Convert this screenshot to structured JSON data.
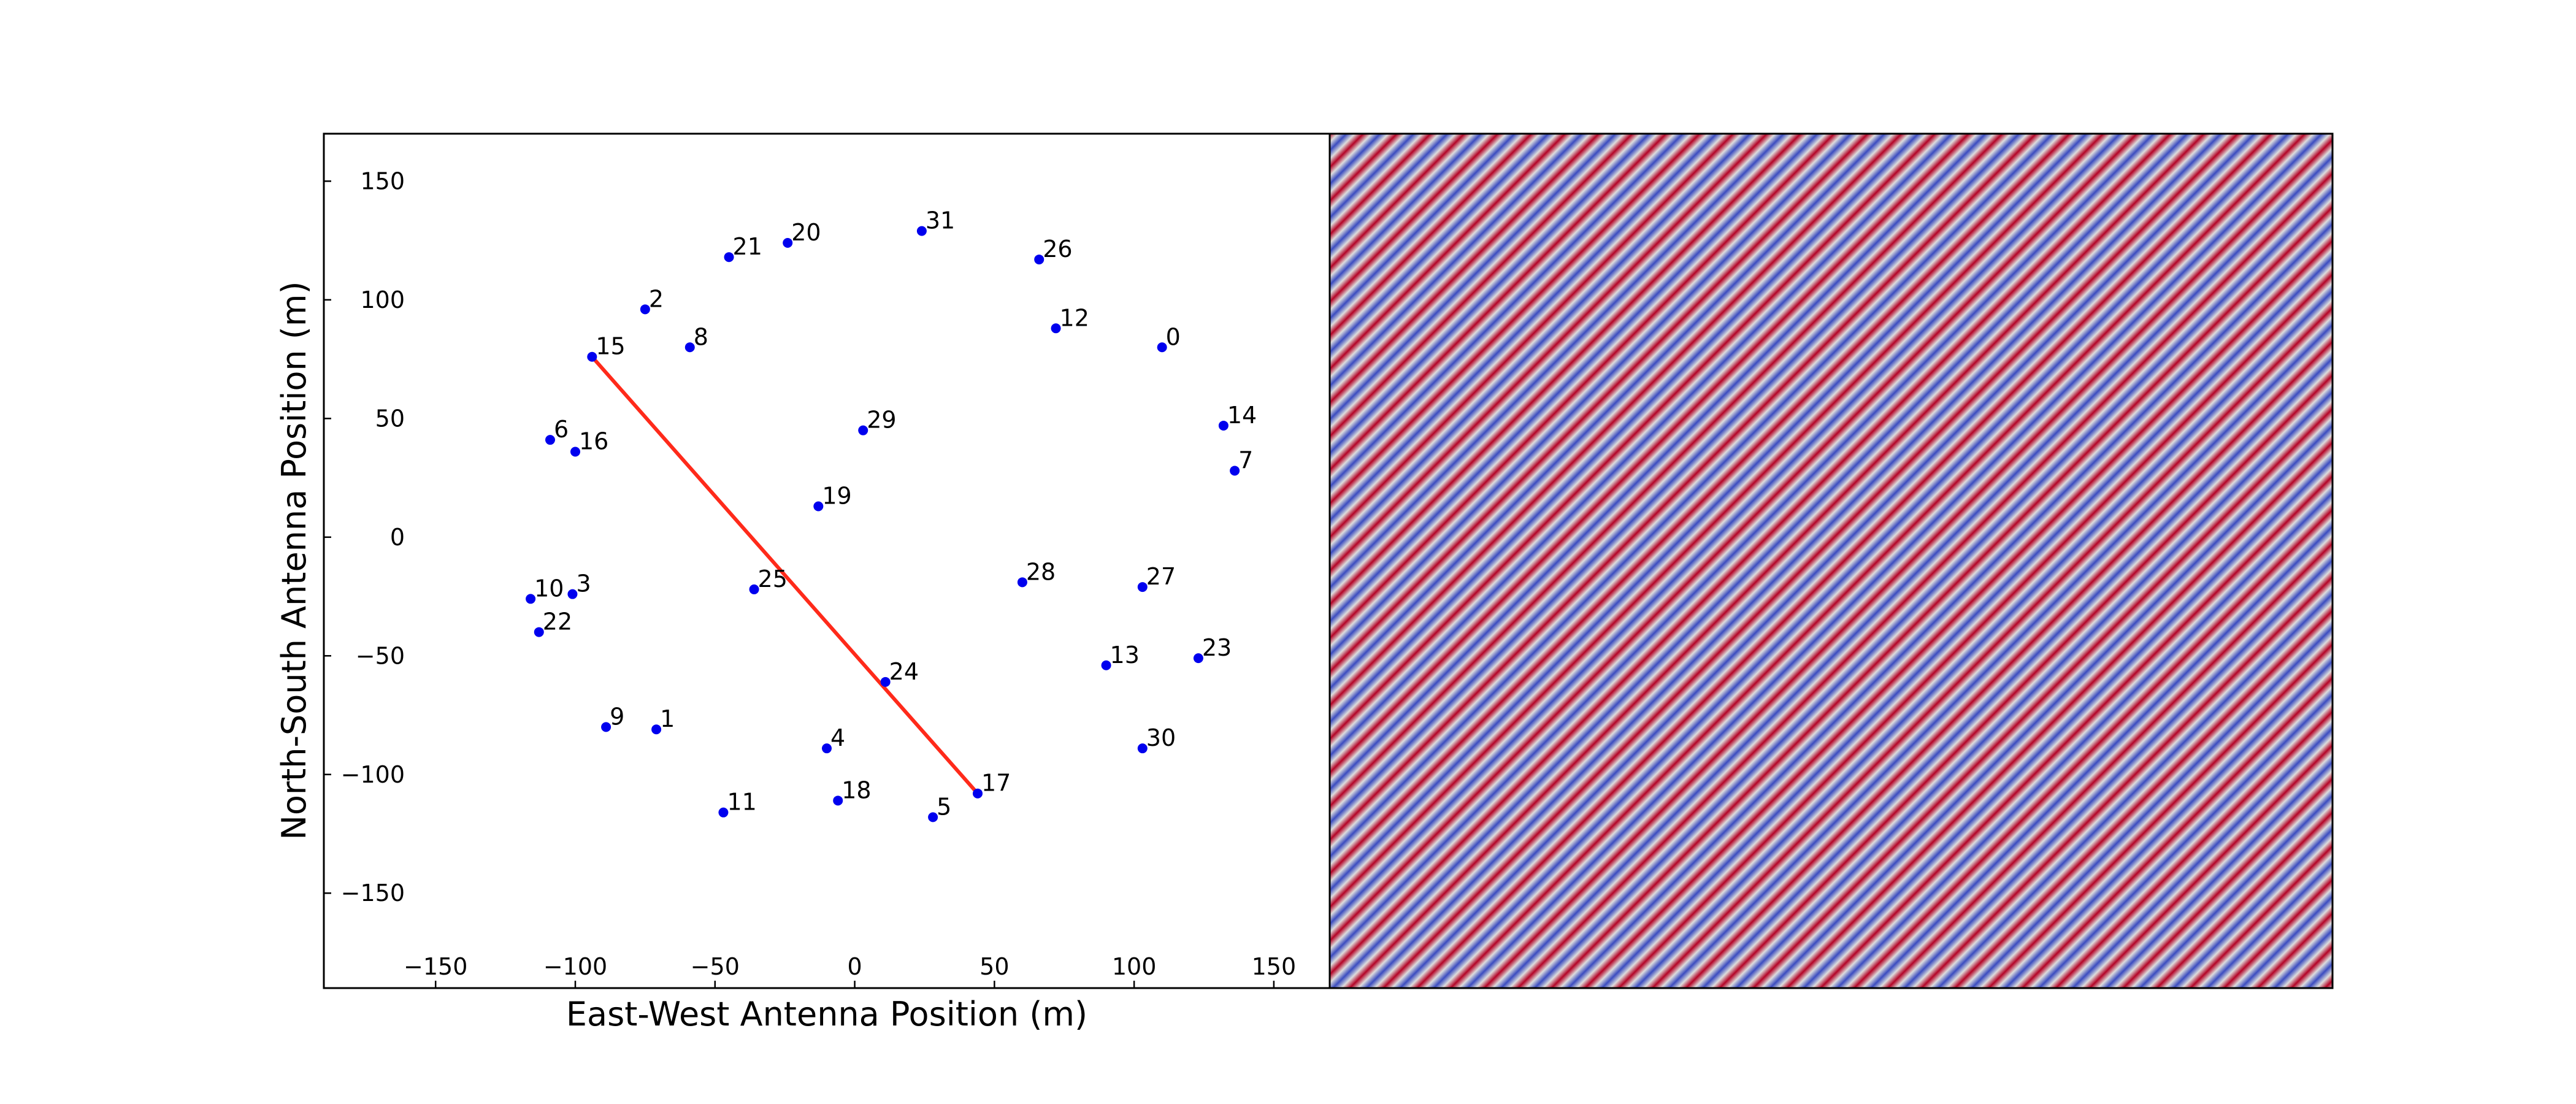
{
  "chart_data": [
    {
      "type": "scatter",
      "title": "",
      "xlabel": "East-West Antenna Position (m)",
      "ylabel": "North-South Antenna Position (m)",
      "xlim": [
        -190,
        170
      ],
      "ylim": [
        -190,
        170
      ],
      "xticks": [
        -150,
        -100,
        -50,
        0,
        50,
        100,
        150
      ],
      "yticks": [
        -150,
        -100,
        -50,
        0,
        50,
        100,
        150
      ],
      "xtick_labels": [
        "−150",
        "−100",
        "−50",
        "0",
        "50",
        "100",
        "150"
      ],
      "ytick_labels": [
        "−150",
        "−100",
        "−50",
        "0",
        "50",
        "100",
        "150"
      ],
      "grid": false,
      "point_color": "#0000ee",
      "baseline_color": "#ff2a1a",
      "antennas": [
        {
          "id": "0",
          "x": 110,
          "y": 80
        },
        {
          "id": "2",
          "x": -75,
          "y": 96
        },
        {
          "id": "8",
          "x": -59,
          "y": 80
        },
        {
          "id": "15",
          "x": -94,
          "y": 76
        },
        {
          "id": "21",
          "x": -45,
          "y": 118
        },
        {
          "id": "20",
          "x": -24,
          "y": 124
        },
        {
          "id": "31",
          "x": 24,
          "y": 129
        },
        {
          "id": "26",
          "x": 66,
          "y": 117
        },
        {
          "id": "12",
          "x": 72,
          "y": 88
        },
        {
          "id": "14",
          "x": 132,
          "y": 47
        },
        {
          "id": "7",
          "x": 136,
          "y": 28
        },
        {
          "id": "6",
          "x": -109,
          "y": 41
        },
        {
          "id": "16",
          "x": -100,
          "y": 36
        },
        {
          "id": "29",
          "x": 3,
          "y": 45
        },
        {
          "id": "19",
          "x": -13,
          "y": 13
        },
        {
          "id": "10",
          "x": -116,
          "y": -26
        },
        {
          "id": "3",
          "x": -101,
          "y": -24
        },
        {
          "id": "22",
          "x": -113,
          "y": -40
        },
        {
          "id": "25",
          "x": -36,
          "y": -22
        },
        {
          "id": "28",
          "x": 60,
          "y": -19
        },
        {
          "id": "27",
          "x": 103,
          "y": -21
        },
        {
          "id": "24",
          "x": 11,
          "y": -61
        },
        {
          "id": "13",
          "x": 90,
          "y": -54
        },
        {
          "id": "23",
          "x": 123,
          "y": -51
        },
        {
          "id": "9",
          "x": -89,
          "y": -80
        },
        {
          "id": "1",
          "x": -71,
          "y": -81
        },
        {
          "id": "4",
          "x": -10,
          "y": -89
        },
        {
          "id": "30",
          "x": 103,
          "y": -89
        },
        {
          "id": "17",
          "x": 44,
          "y": -108
        },
        {
          "id": "18",
          "x": -6,
          "y": -111
        },
        {
          "id": "5",
          "x": 28,
          "y": -118
        },
        {
          "id": "11",
          "x": -47,
          "y": -116
        }
      ],
      "baseline": {
        "from": "15",
        "to": "17"
      }
    },
    {
      "type": "heatmap",
      "title": "",
      "description_none": "",
      "colormap": [
        "#3b4cc0",
        "#dddddd",
        "#b40426"
      ],
      "fringe_period_fraction": 0.0167,
      "fringe_direction": [
        1,
        1
      ]
    }
  ]
}
